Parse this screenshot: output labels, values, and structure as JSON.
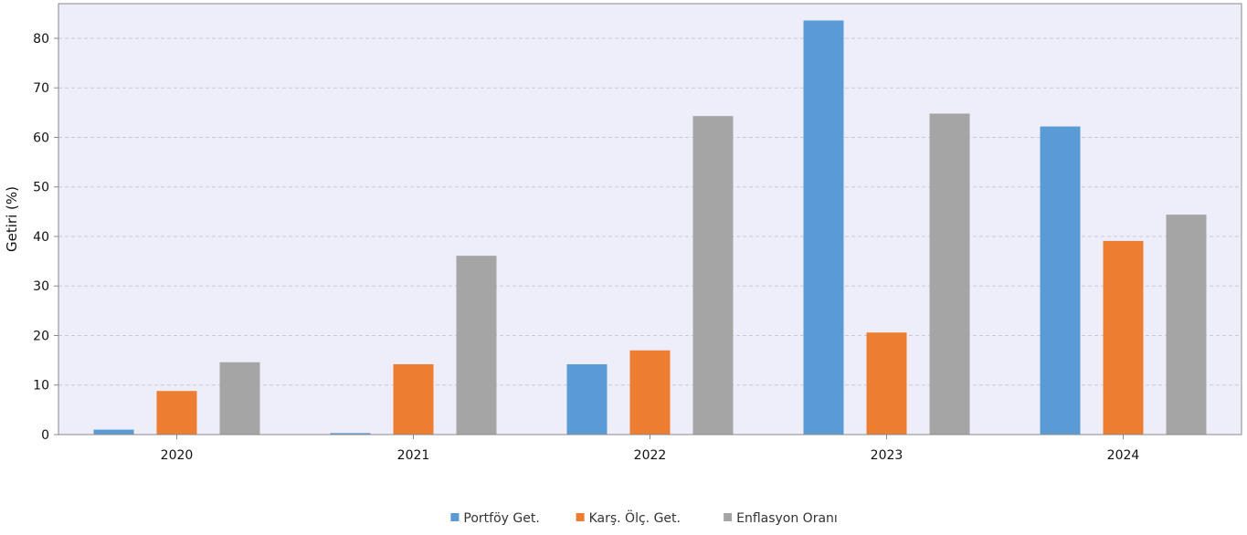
{
  "chart_data": {
    "type": "bar",
    "ylabel": "Getiri (%)",
    "ylim": [
      0,
      87
    ],
    "yticks": [
      0,
      10,
      20,
      30,
      40,
      50,
      60,
      70,
      80
    ],
    "grid": true,
    "legend_position": "bottom-center",
    "categories": [
      "2020",
      "2021",
      "2022",
      "2023",
      "2024"
    ],
    "series": [
      {
        "name": "Portföy Get.",
        "color": "#5b9bd5",
        "values": [
          1.0,
          0.3,
          14.2,
          83.6,
          62.2
        ]
      },
      {
        "name": "Karş. Ölç. Get.",
        "color": "#ed7d31",
        "values": [
          8.8,
          14.2,
          17.0,
          20.6,
          39.1
        ]
      },
      {
        "name": "Enflasyon Oranı",
        "color": "#a5a5a5",
        "values": [
          14.6,
          36.1,
          64.3,
          64.8,
          44.4
        ]
      }
    ]
  },
  "colors": {
    "plot_background": "#eeeefa",
    "gridline": "#c8c8d8",
    "axis": "#888888"
  }
}
